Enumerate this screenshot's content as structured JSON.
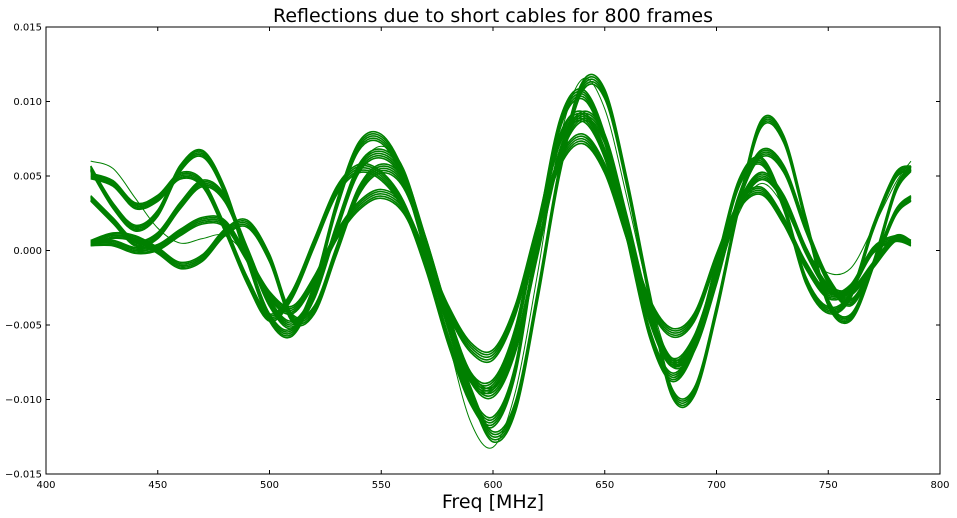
{
  "chart_data": {
    "type": "line",
    "title": "Reflections due to short cables for 800 frames",
    "xlabel": "Freq [MHz]",
    "ylabel": "",
    "xlim": [
      400,
      800
    ],
    "ylim": [
      -0.015,
      0.015
    ],
    "xticks": [
      400,
      450,
      500,
      550,
      600,
      650,
      700,
      750,
      800
    ],
    "xtick_labels": [
      "400",
      "450",
      "500",
      "550",
      "600",
      "650",
      "700",
      "750",
      "800"
    ],
    "yticks": [
      -0.015,
      -0.01,
      -0.005,
      0.0,
      0.005,
      0.01,
      0.015
    ],
    "ytick_labels": [
      "−0.015",
      "−0.010",
      "−0.005",
      "0.000",
      "0.005",
      "0.010",
      "0.015"
    ],
    "grid": false,
    "line_color": "#008000",
    "x": [
      420,
      430,
      440,
      450,
      460,
      470,
      480,
      490,
      500,
      510,
      520,
      530,
      540,
      550,
      560,
      570,
      580,
      590,
      600,
      610,
      620,
      630,
      640,
      650,
      660,
      670,
      680,
      690,
      700,
      710,
      720,
      730,
      740,
      750,
      760,
      770,
      780,
      787
    ],
    "series": [
      {
        "values": [
          0.005,
          0.0045,
          0.003,
          0.0035,
          0.005,
          0.0045,
          0.0015,
          -0.002,
          -0.0045,
          -0.003,
          0.0005,
          0.004,
          0.0055,
          0.005,
          0.003,
          -0.001,
          -0.006,
          -0.01,
          -0.0115,
          -0.008,
          0.001,
          0.0085,
          0.0105,
          0.0075,
          0.001,
          -0.0055,
          -0.0085,
          -0.0065,
          -0.001,
          0.0045,
          0.006,
          0.003,
          -0.002,
          -0.004,
          -0.003,
          0.0015,
          0.005,
          0.0055
        ]
      },
      {
        "values": [
          0.0055,
          0.003,
          0.0015,
          0.0025,
          0.0055,
          0.0065,
          0.004,
          -0.0005,
          -0.0045,
          -0.0055,
          -0.0025,
          0.003,
          0.007,
          0.0075,
          0.005,
          0.0,
          -0.005,
          -0.0095,
          -0.0125,
          -0.0105,
          -0.003,
          0.0055,
          0.011,
          0.0105,
          0.0045,
          -0.003,
          -0.0095,
          -0.0095,
          -0.004,
          0.003,
          0.0085,
          0.0075,
          0.002,
          -0.0035,
          -0.0045,
          -0.001,
          0.004,
          0.0055
        ]
      },
      {
        "values": [
          0.0035,
          0.002,
          0.0005,
          0.001,
          0.003,
          0.0045,
          0.0035,
          0.0,
          -0.0035,
          -0.005,
          -0.003,
          0.0015,
          0.0055,
          0.0065,
          0.005,
          0.0005,
          -0.0045,
          -0.0085,
          -0.0095,
          -0.0065,
          0.0,
          0.0065,
          0.009,
          0.0075,
          0.002,
          -0.004,
          -0.0075,
          -0.0065,
          -0.002,
          0.0035,
          0.0065,
          0.0055,
          0.0015,
          -0.002,
          -0.0035,
          -0.001,
          0.0025,
          0.0035
        ]
      },
      {
        "values": [
          0.0005,
          0.0005,
          0.0,
          0.0002,
          0.0012,
          0.002,
          0.0018,
          -0.0005,
          -0.003,
          -0.004,
          -0.002,
          0.001,
          0.003,
          0.0038,
          0.0028,
          -0.0005,
          -0.004,
          -0.0065,
          -0.007,
          -0.004,
          0.0015,
          0.006,
          0.0075,
          0.0055,
          0.001,
          -0.0035,
          -0.0055,
          -0.0045,
          -0.0005,
          0.003,
          0.004,
          0.002,
          -0.001,
          -0.003,
          -0.0025,
          0.0,
          0.0008,
          0.0005
        ]
      },
      {
        "values": [
          0.0005,
          0.001,
          0.0008,
          0.0,
          -0.001,
          -0.0005,
          0.0012,
          0.0018,
          -0.0005,
          -0.0045,
          -0.004,
          0.0,
          0.004,
          0.0055,
          0.0045,
          0.0005,
          -0.0045,
          -0.0085,
          -0.009,
          -0.0055,
          0.0015,
          0.0075,
          0.009,
          0.0065,
          0.001,
          -0.0045,
          -0.0075,
          -0.006,
          -0.0015,
          0.003,
          0.005,
          0.0035,
          0.0,
          -0.0025,
          -0.0028,
          -0.001,
          0.0008,
          0.0005
        ]
      },
      {
        "values": [
          0.006,
          0.0055,
          0.0035,
          0.0015,
          0.0005,
          0.0008,
          0.001,
          -0.0005,
          -0.0035,
          -0.005,
          -0.003,
          0.0015,
          0.0055,
          0.007,
          0.0055,
          0.0005,
          -0.006,
          -0.0115,
          -0.0132,
          -0.0095,
          -0.0015,
          0.0075,
          0.0115,
          0.0095,
          0.0035,
          -0.003,
          -0.0075,
          -0.0065,
          -0.002,
          0.0025,
          0.0045,
          0.003,
          0.0,
          -0.0015,
          -0.0012,
          0.0015,
          0.0045,
          0.006
        ]
      }
    ]
  }
}
